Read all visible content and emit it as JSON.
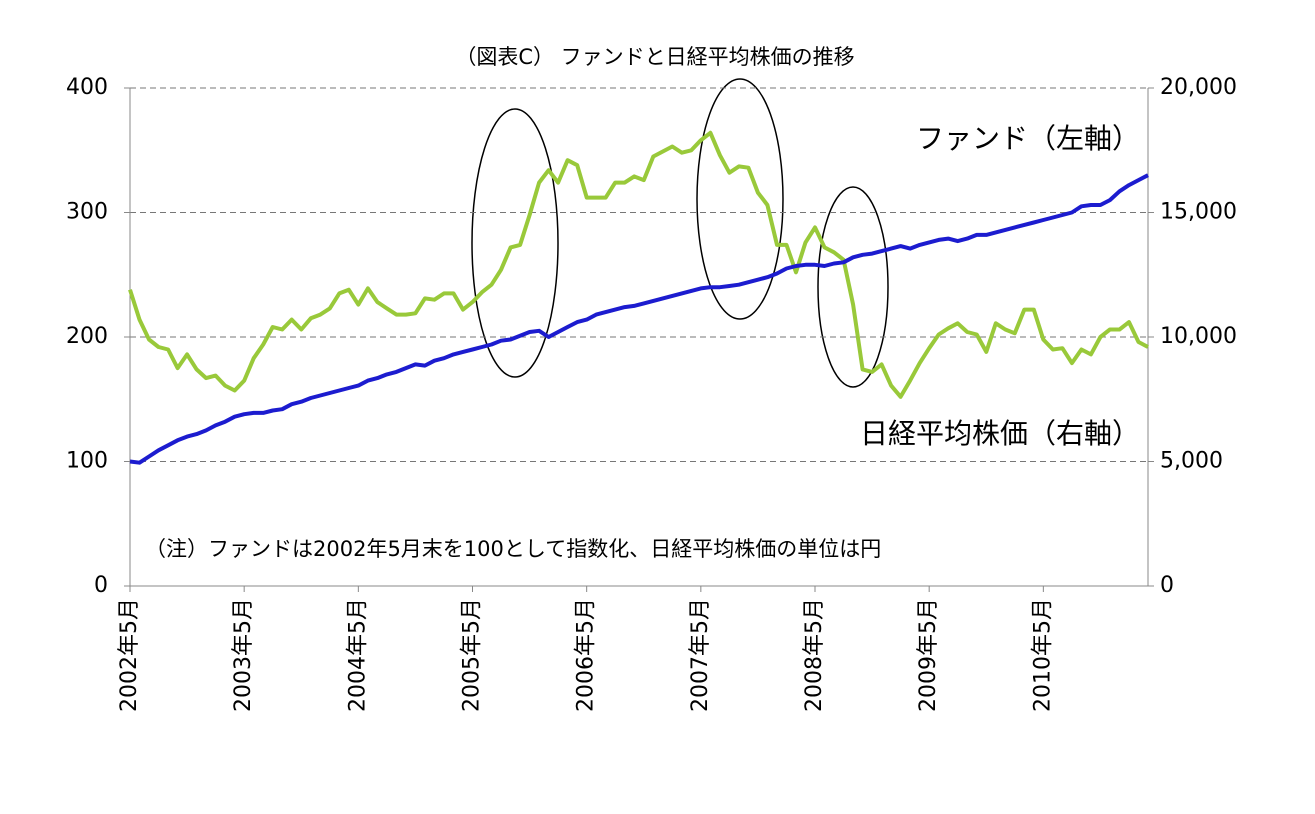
{
  "chart_data": {
    "type": "line",
    "title": "（図表C） ファンドと日経平均株価の推移",
    "annotations": [
      "（注）ファンドは2002年5月末を100として指数化、日経平均株価の単位は円"
    ],
    "categories": [
      "2002年5月",
      null,
      null,
      null,
      null,
      null,
      null,
      null,
      null,
      null,
      null,
      null,
      "2003年5月",
      null,
      null,
      null,
      null,
      null,
      null,
      null,
      null,
      null,
      null,
      null,
      "2004年5月",
      null,
      null,
      null,
      null,
      null,
      null,
      null,
      null,
      null,
      null,
      null,
      "2005年5月",
      null,
      null,
      null,
      null,
      null,
      null,
      null,
      null,
      null,
      null,
      null,
      "2006年5月",
      null,
      null,
      null,
      null,
      null,
      null,
      null,
      null,
      null,
      null,
      null,
      "2007年5月",
      null,
      null,
      null,
      null,
      null,
      null,
      null,
      null,
      null,
      null,
      null,
      "2008年5月",
      null,
      null,
      null,
      null,
      null,
      null,
      null,
      null,
      null,
      null,
      null,
      "2009年5月",
      null,
      null,
      null,
      null,
      null,
      null,
      null,
      null,
      null,
      null,
      null,
      "2010年5月",
      null,
      null,
      null,
      null,
      null,
      null,
      null,
      null,
      null,
      null,
      null
    ],
    "series": [
      {
        "name": "ファンド（左軸）",
        "color": "#1c1ccf",
        "axis": "y",
        "values": [
          100,
          99,
          104,
          109,
          113,
          117,
          120,
          122,
          125,
          129,
          132,
          136,
          138,
          139,
          139,
          141,
          142,
          146,
          148,
          151,
          153,
          155,
          157,
          159,
          161,
          165,
          167,
          170,
          172,
          175,
          178,
          177,
          181,
          183,
          186,
          188,
          190,
          192,
          194,
          197,
          198,
          201,
          204,
          205,
          200,
          204,
          208,
          212,
          214,
          218,
          220,
          222,
          224,
          225,
          227,
          229,
          231,
          233,
          235,
          237,
          239,
          240,
          240,
          241,
          242,
          244,
          246,
          248,
          251,
          255,
          257,
          258,
          258,
          257,
          259,
          260,
          264,
          266,
          267,
          269,
          271,
          273,
          271,
          274,
          276,
          278,
          279,
          277,
          279,
          282,
          282,
          284,
          286,
          288,
          290,
          292,
          294,
          296,
          298,
          300,
          305,
          306,
          306,
          310,
          317,
          322,
          326,
          330
        ]
      },
      {
        "name": "日経平均株価（右軸）",
        "color": "#99c93a",
        "axis": "y2",
        "values": [
          11900,
          10700,
          9900,
          9600,
          9500,
          8750,
          9300,
          8700,
          8350,
          8450,
          8050,
          7850,
          8250,
          9150,
          9700,
          10400,
          10300,
          10700,
          10300,
          10750,
          10900,
          11150,
          11750,
          11900,
          11300,
          11950,
          11400,
          11150,
          10900,
          10900,
          10950,
          11550,
          11500,
          11750,
          11750,
          11100,
          11400,
          11800,
          12100,
          12700,
          13600,
          13700,
          14900,
          16200,
          16700,
          16200,
          17100,
          16900,
          15600,
          15600,
          15600,
          16200,
          16200,
          16450,
          16300,
          17250,
          17450,
          17650,
          17400,
          17500,
          17900,
          18200,
          17300,
          16600,
          16850,
          16800,
          15800,
          15300,
          13700,
          13700,
          12600,
          13800,
          14400,
          13600,
          13400,
          13100,
          11300,
          8700,
          8600,
          8900,
          8050,
          7600,
          8250,
          8950,
          9550,
          10100,
          10350,
          10550,
          10200,
          10100,
          9400,
          10550,
          10300,
          10150,
          11100,
          11100,
          9900,
          9500,
          9550,
          8950,
          9500,
          9300,
          10000,
          10300,
          10300,
          10600,
          9800,
          9600
        ]
      }
    ],
    "ylim": [
      0,
      400
    ],
    "yticks": [
      0,
      100,
      200,
      300,
      400
    ],
    "y2lim": [
      0,
      20000
    ],
    "y2ticks": [
      0,
      {
        "value": 5000,
        "label": "5,000"
      },
      {
        "value": 10000,
        "label": "10,000"
      },
      {
        "value": 15000,
        "label": "15,000"
      },
      {
        "value": 20000,
        "label": "20,000"
      }
    ],
    "grid": true
  }
}
